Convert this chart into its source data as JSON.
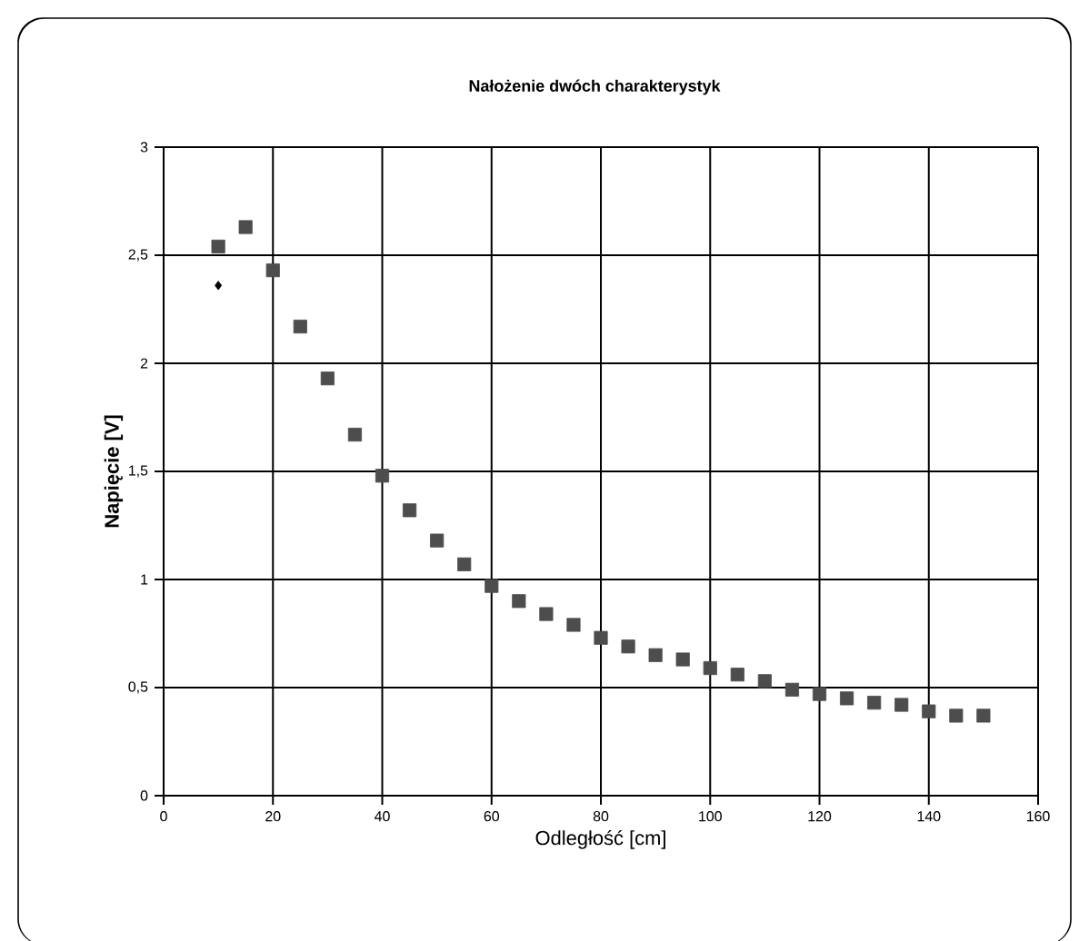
{
  "chart_data": {
    "type": "scatter",
    "title": "Nałożenie dwóch charakterystyk",
    "xlabel": "Odległość [cm]",
    "ylabel": "Napięcie [V]",
    "series": [
      {
        "color": "#4d4d4d",
        "marker": "square",
        "x": [
          10,
          15,
          20,
          25,
          30,
          35,
          40,
          45,
          50,
          55,
          60,
          65,
          70,
          75,
          80,
          85,
          90,
          95,
          100,
          105,
          110,
          115,
          120,
          125,
          130,
          135,
          140,
          145,
          150
        ],
        "values": [
          2.54,
          2.63,
          2.43,
          2.17,
          1.93,
          1.67,
          1.48,
          1.32,
          1.18,
          1.07,
          0.97,
          0.9,
          0.84,
          0.79,
          0.73,
          0.69,
          0.65,
          0.63,
          0.59,
          0.56,
          0.53,
          0.49,
          0.47,
          0.45,
          0.43,
          0.42,
          0.39,
          0.37,
          0.37
        ]
      },
      {
        "color": "#000000",
        "marker": "diamond",
        "x": [
          10
        ],
        "values": [
          2.36
        ]
      }
    ],
    "xlim": [
      0,
      160
    ],
    "xticks": [
      0,
      20,
      40,
      60,
      80,
      100,
      120,
      140,
      160
    ],
    "ylim": [
      0,
      3
    ],
    "yticks": [
      0,
      {
        "value": 0.5,
        "label": "0,5"
      },
      1,
      {
        "value": 1.5,
        "label": "1,5"
      },
      2,
      {
        "value": 2.5,
        "label": "2,5"
      },
      3
    ],
    "grid": true
  }
}
